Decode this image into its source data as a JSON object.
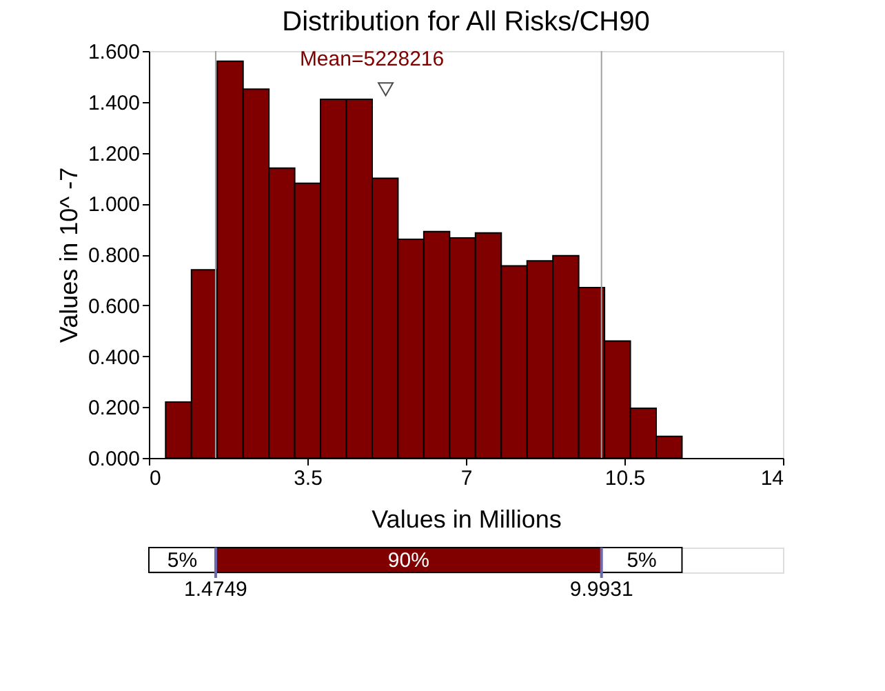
{
  "chart_data": {
    "type": "histogram",
    "title": "Distribution for All Risks/CH90",
    "xlabel": "Values in Millions",
    "ylabel": "Values in 10^ -7",
    "bins": [
      0.37,
      0.94,
      1.51,
      2.08,
      2.65,
      3.22,
      3.79,
      4.36,
      4.93,
      5.5,
      6.07,
      6.64,
      7.21,
      7.78,
      8.35,
      8.92,
      9.49,
      10.06,
      10.63,
      11.2,
      11.77
    ],
    "values": [
      0.22,
      0.74,
      1.56,
      1.45,
      1.14,
      1.08,
      1.41,
      1.41,
      1.1,
      0.86,
      0.89,
      0.865,
      0.885,
      0.755,
      0.775,
      0.795,
      0.67,
      0.46,
      0.195,
      0.085
    ],
    "color": "#800000",
    "xlim": [
      0,
      14
    ],
    "xticks": [
      0,
      3.5,
      7,
      10.5,
      14
    ],
    "ylim": [
      0,
      1.6
    ],
    "yticks": [
      {
        "value": 0,
        "label": "0.000"
      },
      {
        "value": 0.2,
        "label": "0.200"
      },
      {
        "value": 0.4,
        "label": "0.400"
      },
      {
        "value": 0.6,
        "label": "0.600"
      },
      {
        "value": 0.8,
        "label": "0.800"
      },
      {
        "value": 1.0,
        "label": "1.000"
      },
      {
        "value": 1.2,
        "label": "1.200"
      },
      {
        "value": 1.4,
        "label": "1.400"
      },
      {
        "value": 1.6,
        "label": "1.600"
      }
    ],
    "grid": false,
    "ref_lines": [
      {
        "axis": "x",
        "value": 1.4749,
        "color": "#a0a0a0"
      },
      {
        "axis": "x",
        "value": 9.9931,
        "color": "#a0a0a0"
      }
    ],
    "annotations": [
      {
        "text": "Mean=5228216",
        "x": 5.228216,
        "y": 1.45
      },
      "5%",
      "90%",
      "5%",
      "1.4749",
      "9.9931"
    ]
  }
}
